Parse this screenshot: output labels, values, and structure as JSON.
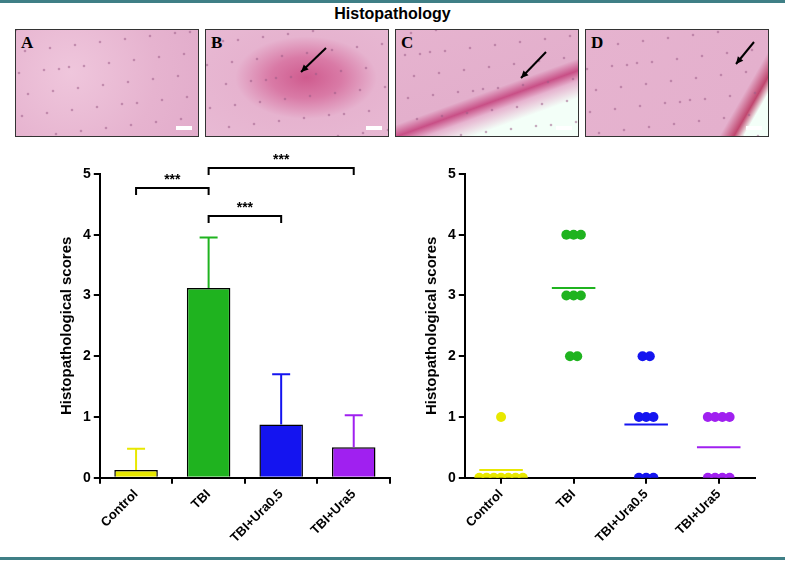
{
  "title": "Histopathology",
  "panels": [
    "A",
    "B",
    "C",
    "D"
  ],
  "chart_data": [
    {
      "type": "bar",
      "categories": [
        "Control",
        "TBI",
        "TBI+Ura0.5",
        "TBI+Ura5"
      ],
      "values": [
        0.125,
        3.125,
        0.875,
        0.5
      ],
      "errors": [
        0.35,
        0.83,
        0.83,
        0.53
      ],
      "colors": [
        "#e8e800",
        "#1fb31f",
        "#1414f0",
        "#a020f0"
      ],
      "y_label": "Histopathological scores",
      "ylim": [
        0,
        5
      ],
      "yticks": [
        0,
        1,
        2,
        3,
        4,
        5
      ],
      "grid": false,
      "comparisons": [
        {
          "from": "Control",
          "to": "TBI",
          "label": "***"
        },
        {
          "from": "TBI",
          "to": "TBI+Ura0.5",
          "label": "***"
        },
        {
          "from": "TBI",
          "to": "TBI+Ura5",
          "label": "***"
        }
      ]
    },
    {
      "type": "scatter",
      "categories": [
        "Control",
        "TBI",
        "TBI+Ura0.5",
        "TBI+Ura5"
      ],
      "points": [
        [
          0,
          0,
          0,
          0,
          0,
          0,
          0,
          1
        ],
        [
          4,
          4,
          4,
          3,
          3,
          3,
          2,
          2
        ],
        [
          2,
          2,
          1,
          1,
          1,
          0,
          0,
          0
        ],
        [
          1,
          1,
          1,
          1,
          0,
          0,
          0,
          0
        ]
      ],
      "means": [
        0.125,
        3.125,
        0.875,
        0.5
      ],
      "colors": [
        "#e8e800",
        "#1fb31f",
        "#1414f0",
        "#a020f0"
      ],
      "y_label": "Histopathological scores",
      "ylim": [
        0,
        5
      ],
      "yticks": [
        0,
        1,
        2,
        3,
        4,
        5
      ],
      "grid": false
    }
  ]
}
